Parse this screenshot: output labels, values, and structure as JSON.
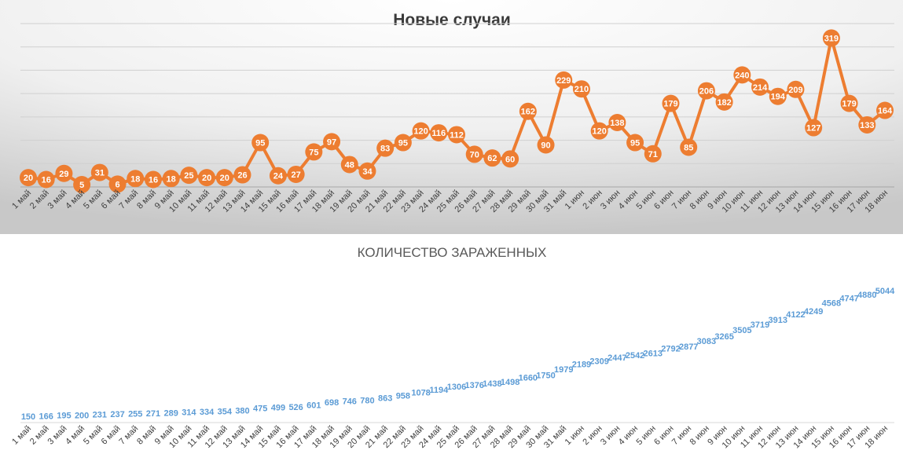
{
  "chart_data": [
    {
      "type": "line",
      "title": "Новые случаи",
      "categories": [
        "1 май",
        "2 май",
        "3 май",
        "4 май",
        "5 май",
        "6 май",
        "7 май",
        "8 май",
        "9 май",
        "10 май",
        "11 май",
        "12 май",
        "13 май",
        "14 май",
        "15 май",
        "16 май",
        "17 май",
        "18 май",
        "19 май",
        "20 май",
        "21 май",
        "22 май",
        "23 май",
        "24 май",
        "25 май",
        "26 май",
        "27 май",
        "28 май",
        "29 май",
        "30 май",
        "31 май",
        "1 июн",
        "2 июн",
        "3 июн",
        "4 июн",
        "5 июн",
        "6 июн",
        "7 июн",
        "8 июн",
        "9 июн",
        "10 июн",
        "11 июн",
        "12 июн",
        "13 июн",
        "14 июн",
        "15 июн",
        "16 июн",
        "17 июн",
        "18 июн"
      ],
      "values": [
        20,
        16,
        29,
        5,
        31,
        6,
        18,
        16,
        18,
        25,
        20,
        20,
        26,
        95,
        24,
        27,
        75,
        97,
        48,
        34,
        83,
        95,
        120,
        116,
        112,
        70,
        62,
        60,
        162,
        90,
        229,
        210,
        120,
        138,
        95,
        71,
        179,
        85,
        206,
        182,
        240,
        214,
        194,
        209,
        127,
        319,
        179,
        133,
        164
      ],
      "ylim": [
        0,
        350
      ],
      "grid": true,
      "data_labels": true,
      "colors": {
        "line": "#ed7d31",
        "marker": "#ed7d31",
        "label_text": "#ffffff"
      }
    },
    {
      "type": "line",
      "title": "КОЛИЧЕСТВО ЗАРАЖЕННЫХ",
      "categories": [
        "1 май",
        "2 май",
        "3 май",
        "4 май",
        "5 май",
        "6 май",
        "7 май",
        "8 май",
        "9 май",
        "10 май",
        "11 май",
        "12 май",
        "13 май",
        "14 май",
        "15 май",
        "16 май",
        "17 май",
        "18 май",
        "19 май",
        "20 май",
        "21 май",
        "22 май",
        "23 май",
        "24 май",
        "25 май",
        "26 май",
        "27 май",
        "28 май",
        "29 май",
        "30 май",
        "31 май",
        "1 июн",
        "2 июн",
        "3 июн",
        "4 июн",
        "5 июн",
        "6 июн",
        "7 июн",
        "8 июн",
        "9 июн",
        "10 июн",
        "11 июн",
        "12 июн",
        "13 июн",
        "14 июн",
        "15 июн",
        "16 июн",
        "17 июн",
        "18 июн"
      ],
      "values": [
        150,
        166,
        195,
        200,
        231,
        237,
        255,
        271,
        289,
        314,
        334,
        354,
        380,
        475,
        499,
        526,
        601,
        698,
        746,
        780,
        863,
        958,
        1078,
        1194,
        1306,
        1376,
        1438,
        1498,
        1660,
        1750,
        1979,
        2189,
        2309,
        2447,
        2542,
        2613,
        2792,
        2877,
        3083,
        3265,
        3505,
        3719,
        3913,
        4122,
        4249,
        4568,
        4747,
        4880,
        5044
      ],
      "line_visible": false,
      "data_labels": true,
      "colors": {
        "label_text": "#5b9bd5"
      }
    }
  ]
}
